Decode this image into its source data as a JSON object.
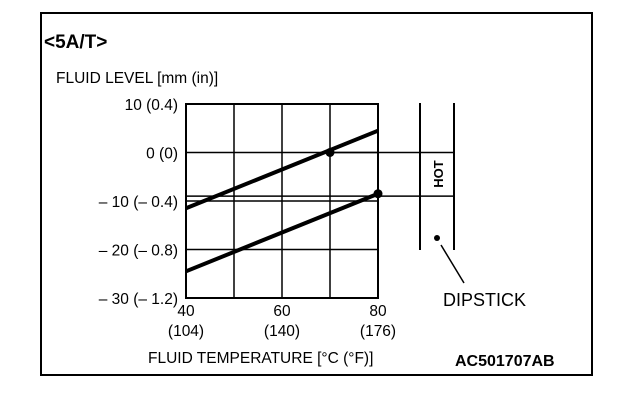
{
  "figure": {
    "section_title": "<5A/T>",
    "figure_code": "AC501707AB",
    "dipstick_label": "DIPSTICK",
    "hot_label": "HOT"
  },
  "chart_data": {
    "type": "line",
    "ylabel": "FLUID LEVEL [mm (in)]",
    "xlabel": "FLUID TEMPERATURE [°C (°F)]",
    "xlim": [
      40,
      80
    ],
    "ylim": [
      -30,
      10
    ],
    "grid": true,
    "x_ticks": [
      {
        "value": 40,
        "label": "40",
        "sub_label": "(104)"
      },
      {
        "value": 60,
        "label": "60",
        "sub_label": "(140)"
      },
      {
        "value": 80,
        "label": "80",
        "sub_label": "(176)"
      }
    ],
    "y_ticks": [
      {
        "value": 10,
        "label": "10 (0.4)"
      },
      {
        "value": 0,
        "label": "0 (0)"
      },
      {
        "value": -10,
        "label": "– 10 (– 0.4)"
      },
      {
        "value": -20,
        "label": "– 20 (– 0.8)"
      },
      {
        "value": -30,
        "label": "– 30 (– 1.2)"
      }
    ],
    "series": [
      {
        "x": [
          40,
          80
        ],
        "y": [
          -11.5,
          4.5
        ]
      },
      {
        "x": [
          40,
          80
        ],
        "y": [
          -24.5,
          -8.5
        ]
      }
    ],
    "markers": [
      {
        "x": 70,
        "y": 0
      },
      {
        "x": 80,
        "y": -8.5
      }
    ],
    "reference_lines": [
      {
        "y": 0,
        "x_from": 70,
        "x_to": 96
      },
      {
        "y": -9,
        "x_from": 40,
        "x_to": 96
      }
    ]
  }
}
